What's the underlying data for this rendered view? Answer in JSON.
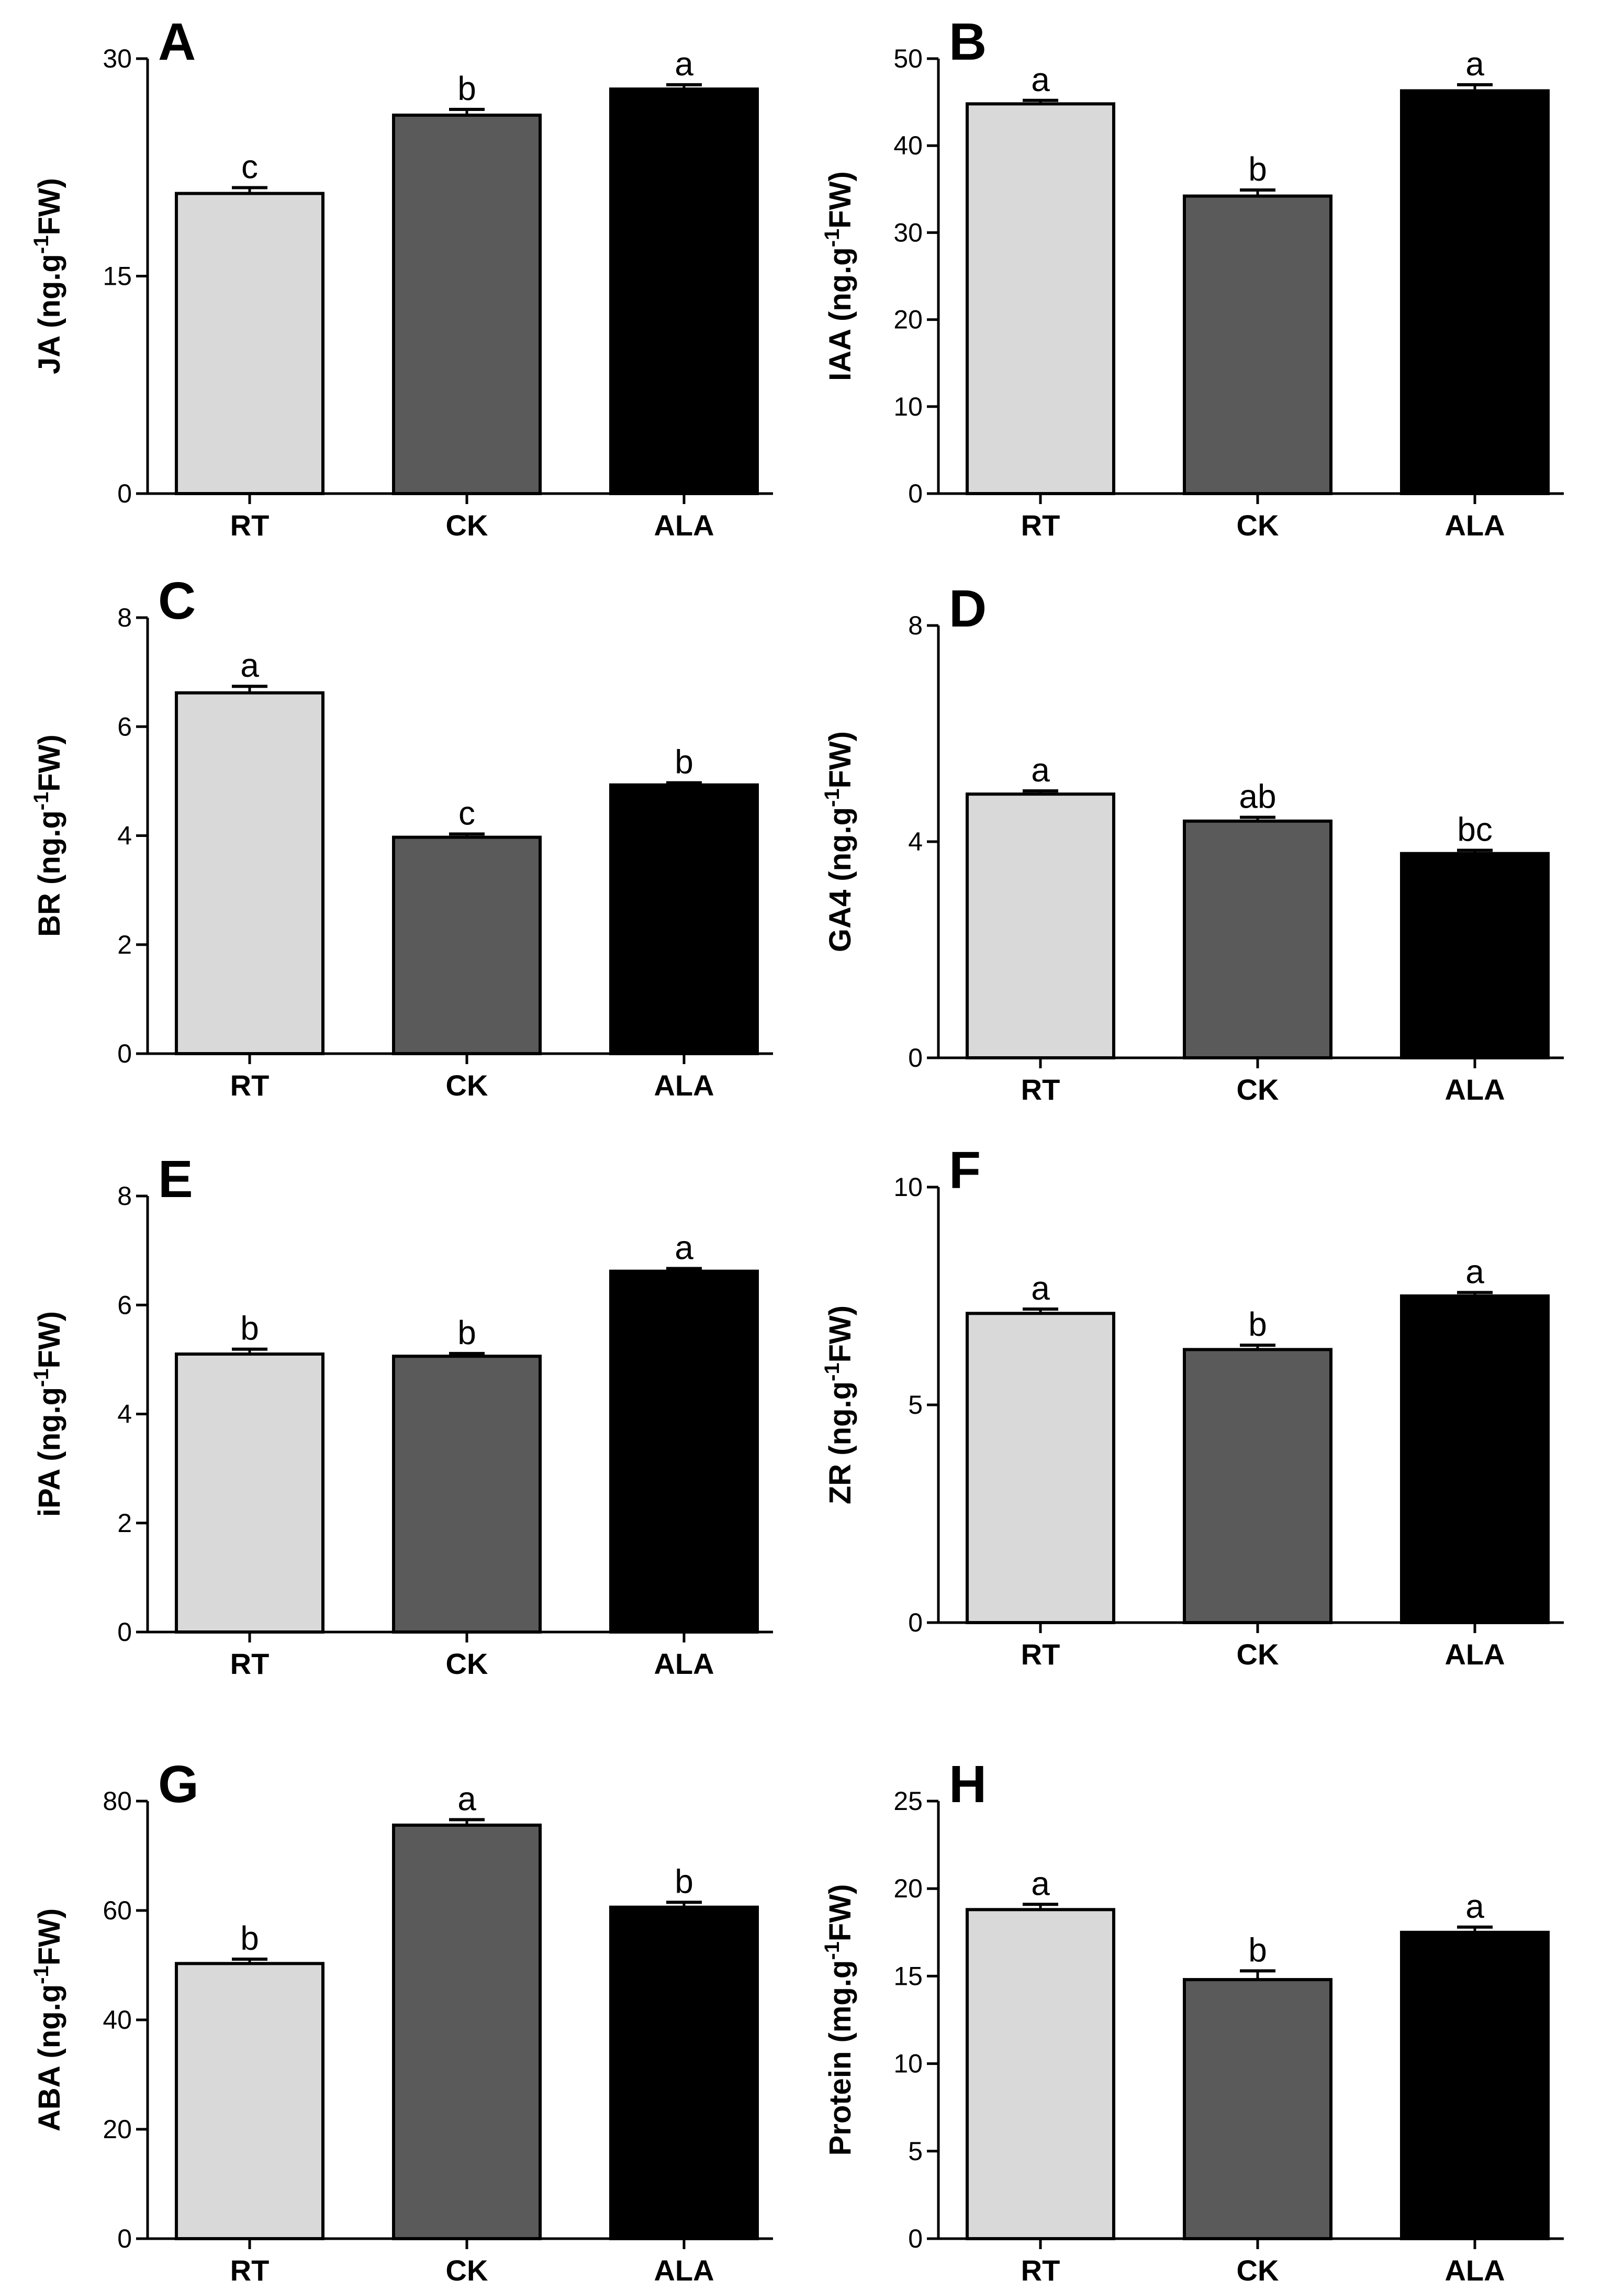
{
  "figure": {
    "categories": [
      "RT",
      "CK",
      "ALA"
    ],
    "bar_colors": [
      "#d9d9d9",
      "#5a5a5a",
      "#000000"
    ],
    "stroke_color": "#000000"
  },
  "chart_data": [
    {
      "type": "bar",
      "panel": "A",
      "ylabel_main": "JA (ng.g",
      "ylabel_sup": "-1",
      "ylabel_end": "FW)",
      "categories": [
        "RT",
        "CK",
        "ALA"
      ],
      "values": [
        20.7,
        26.1,
        27.9
      ],
      "errors": [
        0.4,
        0.4,
        0.3
      ],
      "sig": [
        "c",
        "b",
        "a"
      ],
      "ylim": [
        0,
        30
      ],
      "yticks": [
        0,
        15,
        30
      ]
    },
    {
      "type": "bar",
      "panel": "B",
      "ylabel_main": "IAA (ng.g",
      "ylabel_sup": "-1",
      "ylabel_end": "FW)",
      "categories": [
        "RT",
        "CK",
        "ALA"
      ],
      "values": [
        44.8,
        34.2,
        46.3
      ],
      "errors": [
        0.4,
        0.7,
        0.7
      ],
      "sig": [
        "a",
        "b",
        "a"
      ],
      "ylim": [
        0,
        50
      ],
      "yticks": [
        0,
        10,
        20,
        30,
        40,
        50
      ]
    },
    {
      "type": "bar",
      "panel": "C",
      "ylabel_main": "BR (ng.g",
      "ylabel_sup": "-1",
      "ylabel_end": "FW)",
      "categories": [
        "RT",
        "CK",
        "ALA"
      ],
      "values": [
        6.62,
        3.97,
        4.93
      ],
      "errors": [
        0.12,
        0.06,
        0.04
      ],
      "sig": [
        "a",
        "c",
        "b"
      ],
      "ylim": [
        0,
        8
      ],
      "yticks": [
        0,
        2,
        4,
        6,
        8
      ]
    },
    {
      "type": "bar",
      "panel": "D",
      "ylabel_main": "GA4 (ng.g",
      "ylabel_sup": "-1",
      "ylabel_end": "FW)",
      "categories": [
        "RT",
        "CK",
        "ALA"
      ],
      "values": [
        4.88,
        4.38,
        3.78
      ],
      "errors": [
        0.06,
        0.07,
        0.06
      ],
      "sig": [
        "a",
        "ab",
        "bc"
      ],
      "ylim": [
        0,
        8
      ],
      "yticks": [
        0,
        4,
        8
      ]
    },
    {
      "type": "bar",
      "panel": "E",
      "ylabel_main": "iPA (ng.g",
      "ylabel_sup": "-1",
      "ylabel_end": "FW)",
      "categories": [
        "RT",
        "CK",
        "ALA"
      ],
      "values": [
        5.1,
        5.06,
        6.62
      ],
      "errors": [
        0.09,
        0.05,
        0.05
      ],
      "sig": [
        "b",
        "b",
        "a"
      ],
      "ylim": [
        0,
        8
      ],
      "yticks": [
        0,
        2,
        4,
        6,
        8
      ]
    },
    {
      "type": "bar",
      "panel": "F",
      "ylabel_main": "ZR (ng.g",
      "ylabel_sup": "-1",
      "ylabel_end": "FW)",
      "categories": [
        "RT",
        "CK",
        "ALA"
      ],
      "values": [
        7.1,
        6.27,
        7.5
      ],
      "errors": [
        0.1,
        0.1,
        0.08
      ],
      "sig": [
        "a",
        "b",
        "a"
      ],
      "ylim": [
        0,
        10
      ],
      "yticks": [
        0,
        5,
        10
      ]
    },
    {
      "type": "bar",
      "panel": "G",
      "ylabel_main": "ABA (ng.g",
      "ylabel_sup": "-1",
      "ylabel_end": "FW)",
      "categories": [
        "RT",
        "CK",
        "ALA"
      ],
      "values": [
        50.3,
        75.6,
        60.6
      ],
      "errors": [
        0.8,
        1.0,
        0.9
      ],
      "sig": [
        "b",
        "a",
        "b"
      ],
      "ylim": [
        0,
        80
      ],
      "yticks": [
        0,
        20,
        40,
        60,
        80
      ]
    },
    {
      "type": "bar",
      "panel": "H",
      "ylabel_main": "Protein (mg.g",
      "ylabel_sup": "-1",
      "ylabel_end": "FW)",
      "categories": [
        "RT",
        "CK",
        "ALA"
      ],
      "values": [
        18.8,
        14.8,
        17.5
      ],
      "errors": [
        0.3,
        0.5,
        0.3
      ],
      "sig": [
        "a",
        "b",
        "a"
      ],
      "ylim": [
        0,
        25
      ],
      "yticks": [
        0,
        5,
        10,
        15,
        20,
        25
      ]
    }
  ]
}
